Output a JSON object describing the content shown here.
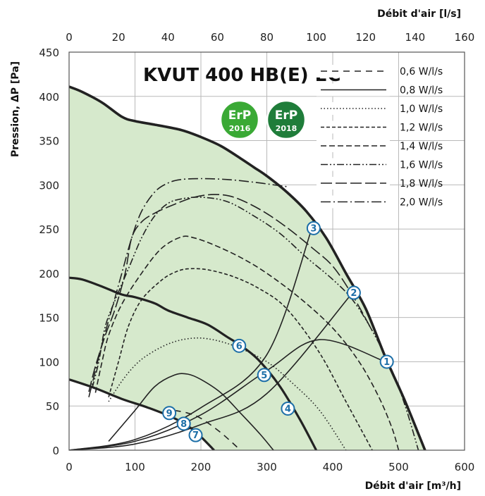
{
  "chart_data": {
    "type": "line",
    "title": "KVUT 400 HB(E) EC",
    "xlabel": "Débit d'air [m³/h]",
    "xlabel_top": "Débit d'air [l/s]",
    "ylabel": "Pression, ΔP [Pa]",
    "xlim": [
      0,
      600
    ],
    "ylim": [
      0,
      450
    ],
    "xlim_top": [
      0,
      160
    ],
    "x_ticks": [
      "0",
      "100",
      "200",
      "300",
      "400",
      "500",
      "600"
    ],
    "x_ticks_top": [
      "0",
      "20",
      "40",
      "60",
      "80",
      "100",
      "120",
      "140",
      "160"
    ],
    "y_ticks": [
      "0",
      "50",
      "100",
      "150",
      "200",
      "250",
      "300",
      "350",
      "400",
      "450"
    ],
    "grid": true,
    "legend_position": "top-right",
    "badges": [
      {
        "line1": "ErP",
        "line2": "2016",
        "color": "#3aa935"
      },
      {
        "line1": "ErP",
        "line2": "2018",
        "color": "#1f7d3a"
      }
    ],
    "envelope": {
      "fill": "#d6e9cc",
      "max_curve": [
        [
          0,
          411
        ],
        [
          20,
          405
        ],
        [
          50,
          393
        ],
        [
          80,
          377
        ],
        [
          100,
          372
        ],
        [
          130,
          368
        ],
        [
          170,
          362
        ],
        [
          200,
          354
        ],
        [
          230,
          344
        ],
        [
          260,
          330
        ],
        [
          280,
          320
        ],
        [
          300,
          310
        ],
        [
          330,
          292
        ],
        [
          360,
          270
        ],
        [
          390,
          240
        ],
        [
          420,
          200
        ],
        [
          450,
          160
        ],
        [
          480,
          105
        ],
        [
          510,
          55
        ],
        [
          540,
          0
        ]
      ],
      "min_curve": [
        [
          0,
          80
        ],
        [
          40,
          70
        ],
        [
          80,
          58
        ],
        [
          120,
          48
        ],
        [
          160,
          36
        ],
        [
          190,
          22
        ],
        [
          220,
          0
        ]
      ]
    },
    "medium_curve": [
      [
        0,
        195
      ],
      [
        20,
        193
      ],
      [
        50,
        185
      ],
      [
        80,
        176
      ],
      [
        100,
        173
      ],
      [
        130,
        166
      ],
      [
        150,
        158
      ],
      [
        180,
        150
      ],
      [
        210,
        142
      ],
      [
        240,
        128
      ],
      [
        265,
        116
      ],
      [
        290,
        100
      ],
      [
        320,
        72
      ],
      [
        350,
        35
      ],
      [
        375,
        0
      ]
    ],
    "legend": [
      {
        "label": "0,6 W/l/s",
        "dash": "9 7"
      },
      {
        "label": "0,8 W/l/s",
        "dash": ""
      },
      {
        "label": "1,0 W/l/s",
        "dash": "1.5 3"
      },
      {
        "label": "1,2 W/l/s",
        "dash": "5 3"
      },
      {
        "label": "1,4 W/l/s",
        "dash": "8 4"
      },
      {
        "label": "1,6 W/l/s",
        "dash": "10 3 2 3 2 3"
      },
      {
        "label": "1,8 W/l/s",
        "dash": "16 5"
      },
      {
        "label": "2,0 W/l/s",
        "dash": "14 4 2 4"
      }
    ],
    "series": [
      {
        "name": "0,6 W/l/s",
        "points": [
          [
            160,
            45
          ],
          [
            180,
            42
          ],
          [
            200,
            36
          ],
          [
            230,
            20
          ],
          [
            260,
            0
          ]
        ]
      },
      {
        "name": "0,8 W/l/s",
        "points": [
          [
            60,
            10
          ],
          [
            100,
            45
          ],
          [
            130,
            72
          ],
          [
            160,
            85
          ],
          [
            180,
            86
          ],
          [
            200,
            80
          ],
          [
            230,
            65
          ],
          [
            260,
            42
          ],
          [
            290,
            18
          ],
          [
            310,
            0
          ]
        ]
      },
      {
        "name": "1,0 W/l/s",
        "points": [
          [
            60,
            55
          ],
          [
            80,
            78
          ],
          [
            100,
            96
          ],
          [
            120,
            108
          ],
          [
            150,
            120
          ],
          [
            180,
            126
          ],
          [
            210,
            126
          ],
          [
            250,
            118
          ],
          [
            300,
            100
          ],
          [
            340,
            75
          ],
          [
            380,
            45
          ],
          [
            420,
            0
          ]
        ]
      },
      {
        "name": "1,2 W/l/s",
        "points": [
          [
            60,
            60
          ],
          [
            75,
            100
          ],
          [
            90,
            140
          ],
          [
            110,
            170
          ],
          [
            140,
            192
          ],
          [
            160,
            201
          ],
          [
            180,
            205
          ],
          [
            210,
            204
          ],
          [
            250,
            196
          ],
          [
            290,
            182
          ],
          [
            330,
            160
          ],
          [
            380,
            110
          ],
          [
            420,
            55
          ],
          [
            460,
            0
          ]
        ]
      },
      {
        "name": "1,4 W/l/s",
        "points": [
          [
            40,
            65
          ],
          [
            50,
            100
          ],
          [
            60,
            130
          ],
          [
            80,
            165
          ],
          [
            110,
            200
          ],
          [
            140,
            228
          ],
          [
            170,
            241
          ],
          [
            190,
            240
          ],
          [
            220,
            232
          ],
          [
            260,
            218
          ],
          [
            300,
            200
          ],
          [
            350,
            172
          ],
          [
            400,
            138
          ],
          [
            440,
            100
          ],
          [
            470,
            60
          ],
          [
            490,
            25
          ],
          [
            500,
            0
          ]
        ]
      },
      {
        "name": "1,6 W/l/s",
        "points": [
          [
            35,
            70
          ],
          [
            45,
            100
          ],
          [
            55,
            140
          ],
          [
            70,
            170
          ],
          [
            90,
            205
          ],
          [
            110,
            240
          ],
          [
            130,
            265
          ],
          [
            150,
            279
          ],
          [
            170,
            284
          ],
          [
            200,
            286
          ],
          [
            240,
            281
          ],
          [
            280,
            265
          ],
          [
            320,
            245
          ],
          [
            360,
            218
          ],
          [
            400,
            193
          ],
          [
            430,
            170
          ],
          [
            460,
            135
          ],
          [
            490,
            90
          ],
          [
            510,
            50
          ],
          [
            530,
            0
          ]
        ]
      },
      {
        "name": "1,8 W/l/s",
        "points": [
          [
            30,
            66
          ],
          [
            40,
            95
          ],
          [
            55,
            130
          ],
          [
            70,
            160
          ],
          [
            85,
            200
          ],
          [
            95,
            240
          ],
          [
            110,
            258
          ],
          [
            130,
            268
          ],
          [
            160,
            278
          ],
          [
            190,
            286
          ],
          [
            220,
            289
          ],
          [
            250,
            286
          ],
          [
            290,
            272
          ],
          [
            330,
            252
          ],
          [
            370,
            228
          ],
          [
            400,
            208
          ],
          [
            430,
            175
          ],
          [
            460,
            135
          ]
        ]
      },
      {
        "name": "2,0 W/l/s",
        "points": [
          [
            30,
            60
          ],
          [
            40,
            90
          ],
          [
            50,
            120
          ],
          [
            65,
            160
          ],
          [
            80,
            200
          ],
          [
            95,
            240
          ],
          [
            110,
            270
          ],
          [
            130,
            292
          ],
          [
            150,
            302
          ],
          [
            170,
            306
          ],
          [
            200,
            307
          ],
          [
            240,
            306
          ],
          [
            280,
            303
          ],
          [
            310,
            300
          ],
          [
            330,
            298
          ]
        ]
      }
    ],
    "system_curves": [
      {
        "points": [
          [
            0,
            0
          ],
          [
            100,
            10
          ],
          [
            200,
            40
          ],
          [
            300,
            90
          ],
          [
            380,
            125
          ],
          [
            480,
            100
          ]
        ]
      },
      {
        "points": [
          [
            0,
            0
          ],
          [
            100,
            7
          ],
          [
            200,
            29
          ],
          [
            300,
            64
          ],
          [
            430,
            178
          ]
        ]
      },
      {
        "points": [
          [
            0,
            0
          ],
          [
            100,
            12
          ],
          [
            200,
            48
          ],
          [
            300,
            108
          ],
          [
            368,
            250
          ]
        ]
      }
    ],
    "operating_points": [
      {
        "label": "1",
        "x": 482,
        "y": 100
      },
      {
        "label": "2",
        "x": 432,
        "y": 178
      },
      {
        "label": "3",
        "x": 371,
        "y": 251
      },
      {
        "label": "4",
        "x": 332,
        "y": 47
      },
      {
        "label": "5",
        "x": 296,
        "y": 85
      },
      {
        "label": "6",
        "x": 258,
        "y": 118
      },
      {
        "label": "7",
        "x": 192,
        "y": 17
      },
      {
        "label": "8",
        "x": 174,
        "y": 30
      },
      {
        "label": "9",
        "x": 152,
        "y": 42
      }
    ]
  }
}
